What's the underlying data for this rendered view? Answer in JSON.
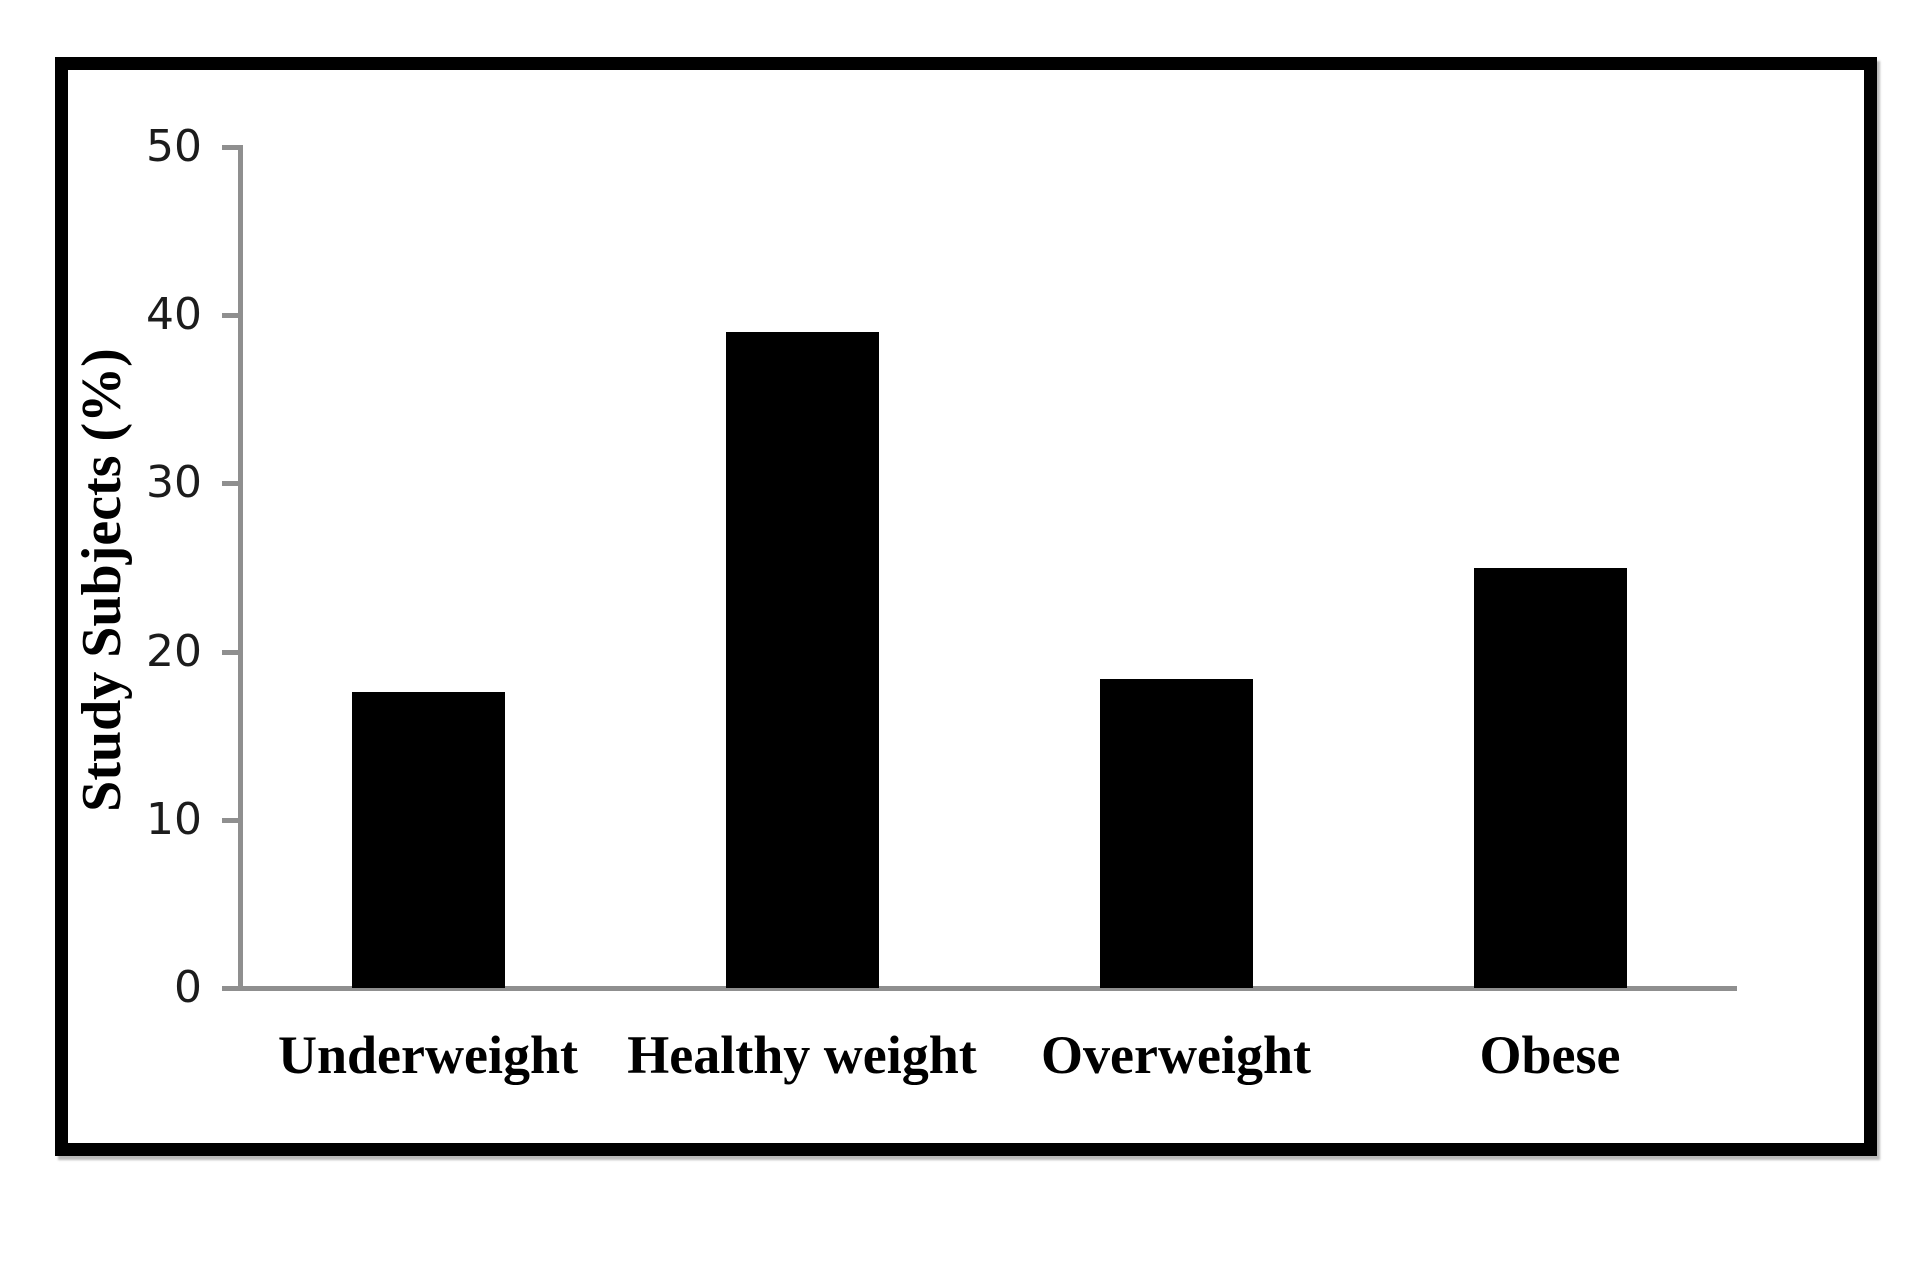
{
  "chart_data": {
    "type": "bar",
    "categories": [
      "Underweight",
      "Healthy weight",
      "Overweight",
      "Obese"
    ],
    "values": [
      17.6,
      39,
      18.4,
      25
    ],
    "title": "",
    "xlabel": "",
    "ylabel": "Study Subjects (%)",
    "ylim": [
      0,
      50
    ],
    "yticks": [
      0,
      10,
      20,
      30,
      40,
      50
    ],
    "grid": false,
    "legend": null,
    "colors": {
      "bar": "#000000",
      "axis": "#8f8f8f",
      "text": "#000000",
      "frame": "#000000",
      "background": "#ffffff"
    }
  }
}
